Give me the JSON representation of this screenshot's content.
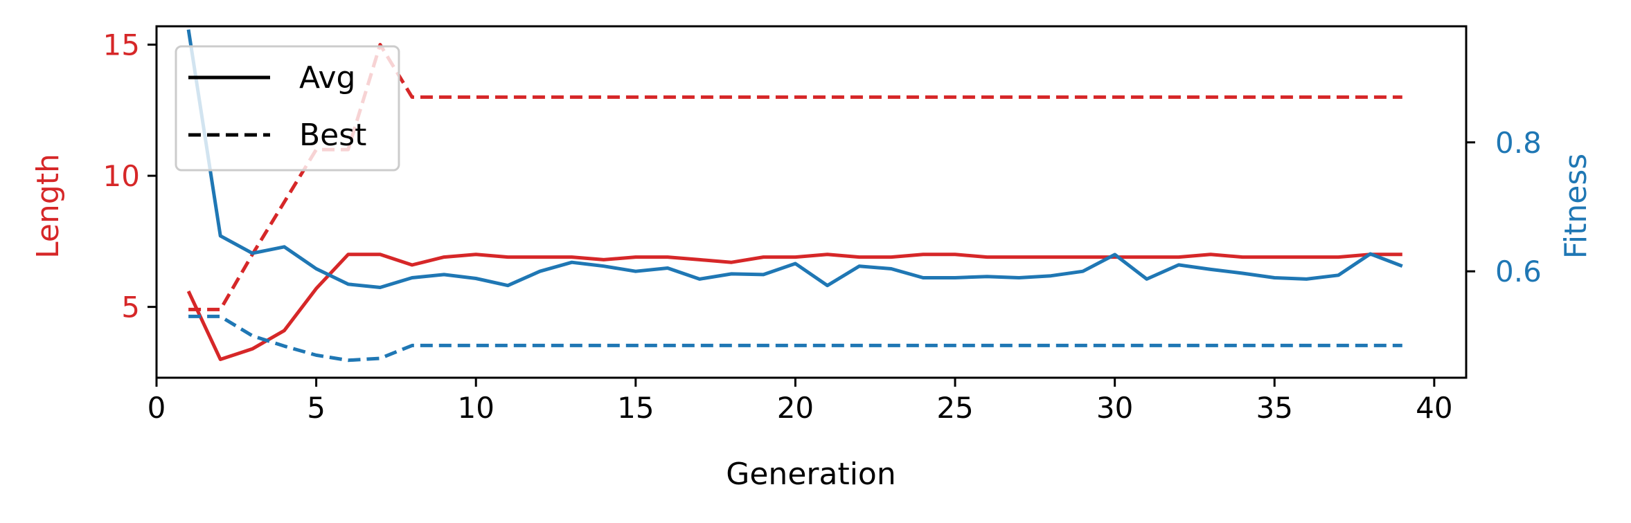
{
  "colors": {
    "length": "#d62728",
    "fitness": "#1f77b4",
    "axis": "#000000",
    "legend_border": "#cccccc"
  },
  "chart_data": {
    "type": "line",
    "title": "",
    "xlabel": "Generation",
    "ylabel_left": "Length",
    "ylabel_right": "Fitness",
    "xlim": [
      0,
      41
    ],
    "ylim_left": [
      2.3,
      15.7
    ],
    "ylim_right": [
      0.435,
      0.98
    ],
    "x_ticks": [
      0,
      5,
      10,
      15,
      20,
      25,
      30,
      35,
      40
    ],
    "y_left_ticks": [
      5,
      10,
      15
    ],
    "y_right_ticks": [
      0.6,
      0.8
    ],
    "grid": false,
    "legend": {
      "placement": "top-left",
      "entries": [
        {
          "label": "Avg",
          "linestyle": "solid"
        },
        {
          "label": "Best",
          "linestyle": "dashed"
        }
      ]
    },
    "x": [
      1,
      2,
      3,
      4,
      5,
      6,
      7,
      8,
      9,
      10,
      11,
      12,
      13,
      14,
      15,
      16,
      17,
      18,
      19,
      20,
      21,
      22,
      23,
      24,
      25,
      26,
      27,
      28,
      29,
      30,
      31,
      32,
      33,
      34,
      35,
      36,
      37,
      38,
      39
    ],
    "series": [
      {
        "metric": "Length",
        "stat": "Avg",
        "axis": "left",
        "linestyle": "solid",
        "values": [
          5.6,
          3.0,
          3.4,
          4.1,
          5.7,
          7.0,
          7.0,
          6.6,
          6.9,
          7.0,
          6.9,
          6.9,
          6.9,
          6.8,
          6.9,
          6.9,
          6.8,
          6.7,
          6.9,
          6.9,
          7.0,
          6.9,
          6.9,
          7.0,
          7.0,
          6.9,
          6.9,
          6.9,
          6.9,
          6.9,
          6.9,
          6.9,
          7.0,
          6.9,
          6.9,
          6.9,
          6.9,
          7.0,
          7.0
        ]
      },
      {
        "metric": "Length",
        "stat": "Best",
        "axis": "left",
        "linestyle": "dashed",
        "values": [
          4.9,
          4.9,
          7.0,
          9.0,
          11.0,
          11.0,
          15.0,
          13.0,
          13.0,
          13.0,
          13.0,
          13.0,
          13.0,
          13.0,
          13.0,
          13.0,
          13.0,
          13.0,
          13.0,
          13.0,
          13.0,
          13.0,
          13.0,
          13.0,
          13.0,
          13.0,
          13.0,
          13.0,
          13.0,
          13.0,
          13.0,
          13.0,
          13.0,
          13.0,
          13.0,
          13.0,
          13.0,
          13.0,
          13.0
        ]
      },
      {
        "metric": "Fitness",
        "stat": "Avg",
        "axis": "right",
        "linestyle": "solid",
        "values": [
          0.975,
          0.655,
          0.628,
          0.638,
          0.604,
          0.58,
          0.575,
          0.59,
          0.595,
          0.589,
          0.578,
          0.6,
          0.614,
          0.608,
          0.6,
          0.605,
          0.588,
          0.596,
          0.595,
          0.612,
          0.578,
          0.608,
          0.604,
          0.59,
          0.59,
          0.592,
          0.59,
          0.593,
          0.6,
          0.626,
          0.588,
          0.61,
          0.603,
          0.597,
          0.59,
          0.588,
          0.594,
          0.627,
          0.608
        ]
      },
      {
        "metric": "Fitness",
        "stat": "Best",
        "axis": "right",
        "linestyle": "dashed",
        "values": [
          0.53,
          0.53,
          0.5,
          0.484,
          0.47,
          0.462,
          0.465,
          0.485,
          0.485,
          0.485,
          0.485,
          0.485,
          0.485,
          0.485,
          0.485,
          0.485,
          0.485,
          0.485,
          0.485,
          0.485,
          0.485,
          0.485,
          0.485,
          0.485,
          0.485,
          0.485,
          0.485,
          0.485,
          0.485,
          0.485,
          0.485,
          0.485,
          0.485,
          0.485,
          0.485,
          0.485,
          0.485,
          0.485,
          0.485
        ]
      }
    ]
  }
}
